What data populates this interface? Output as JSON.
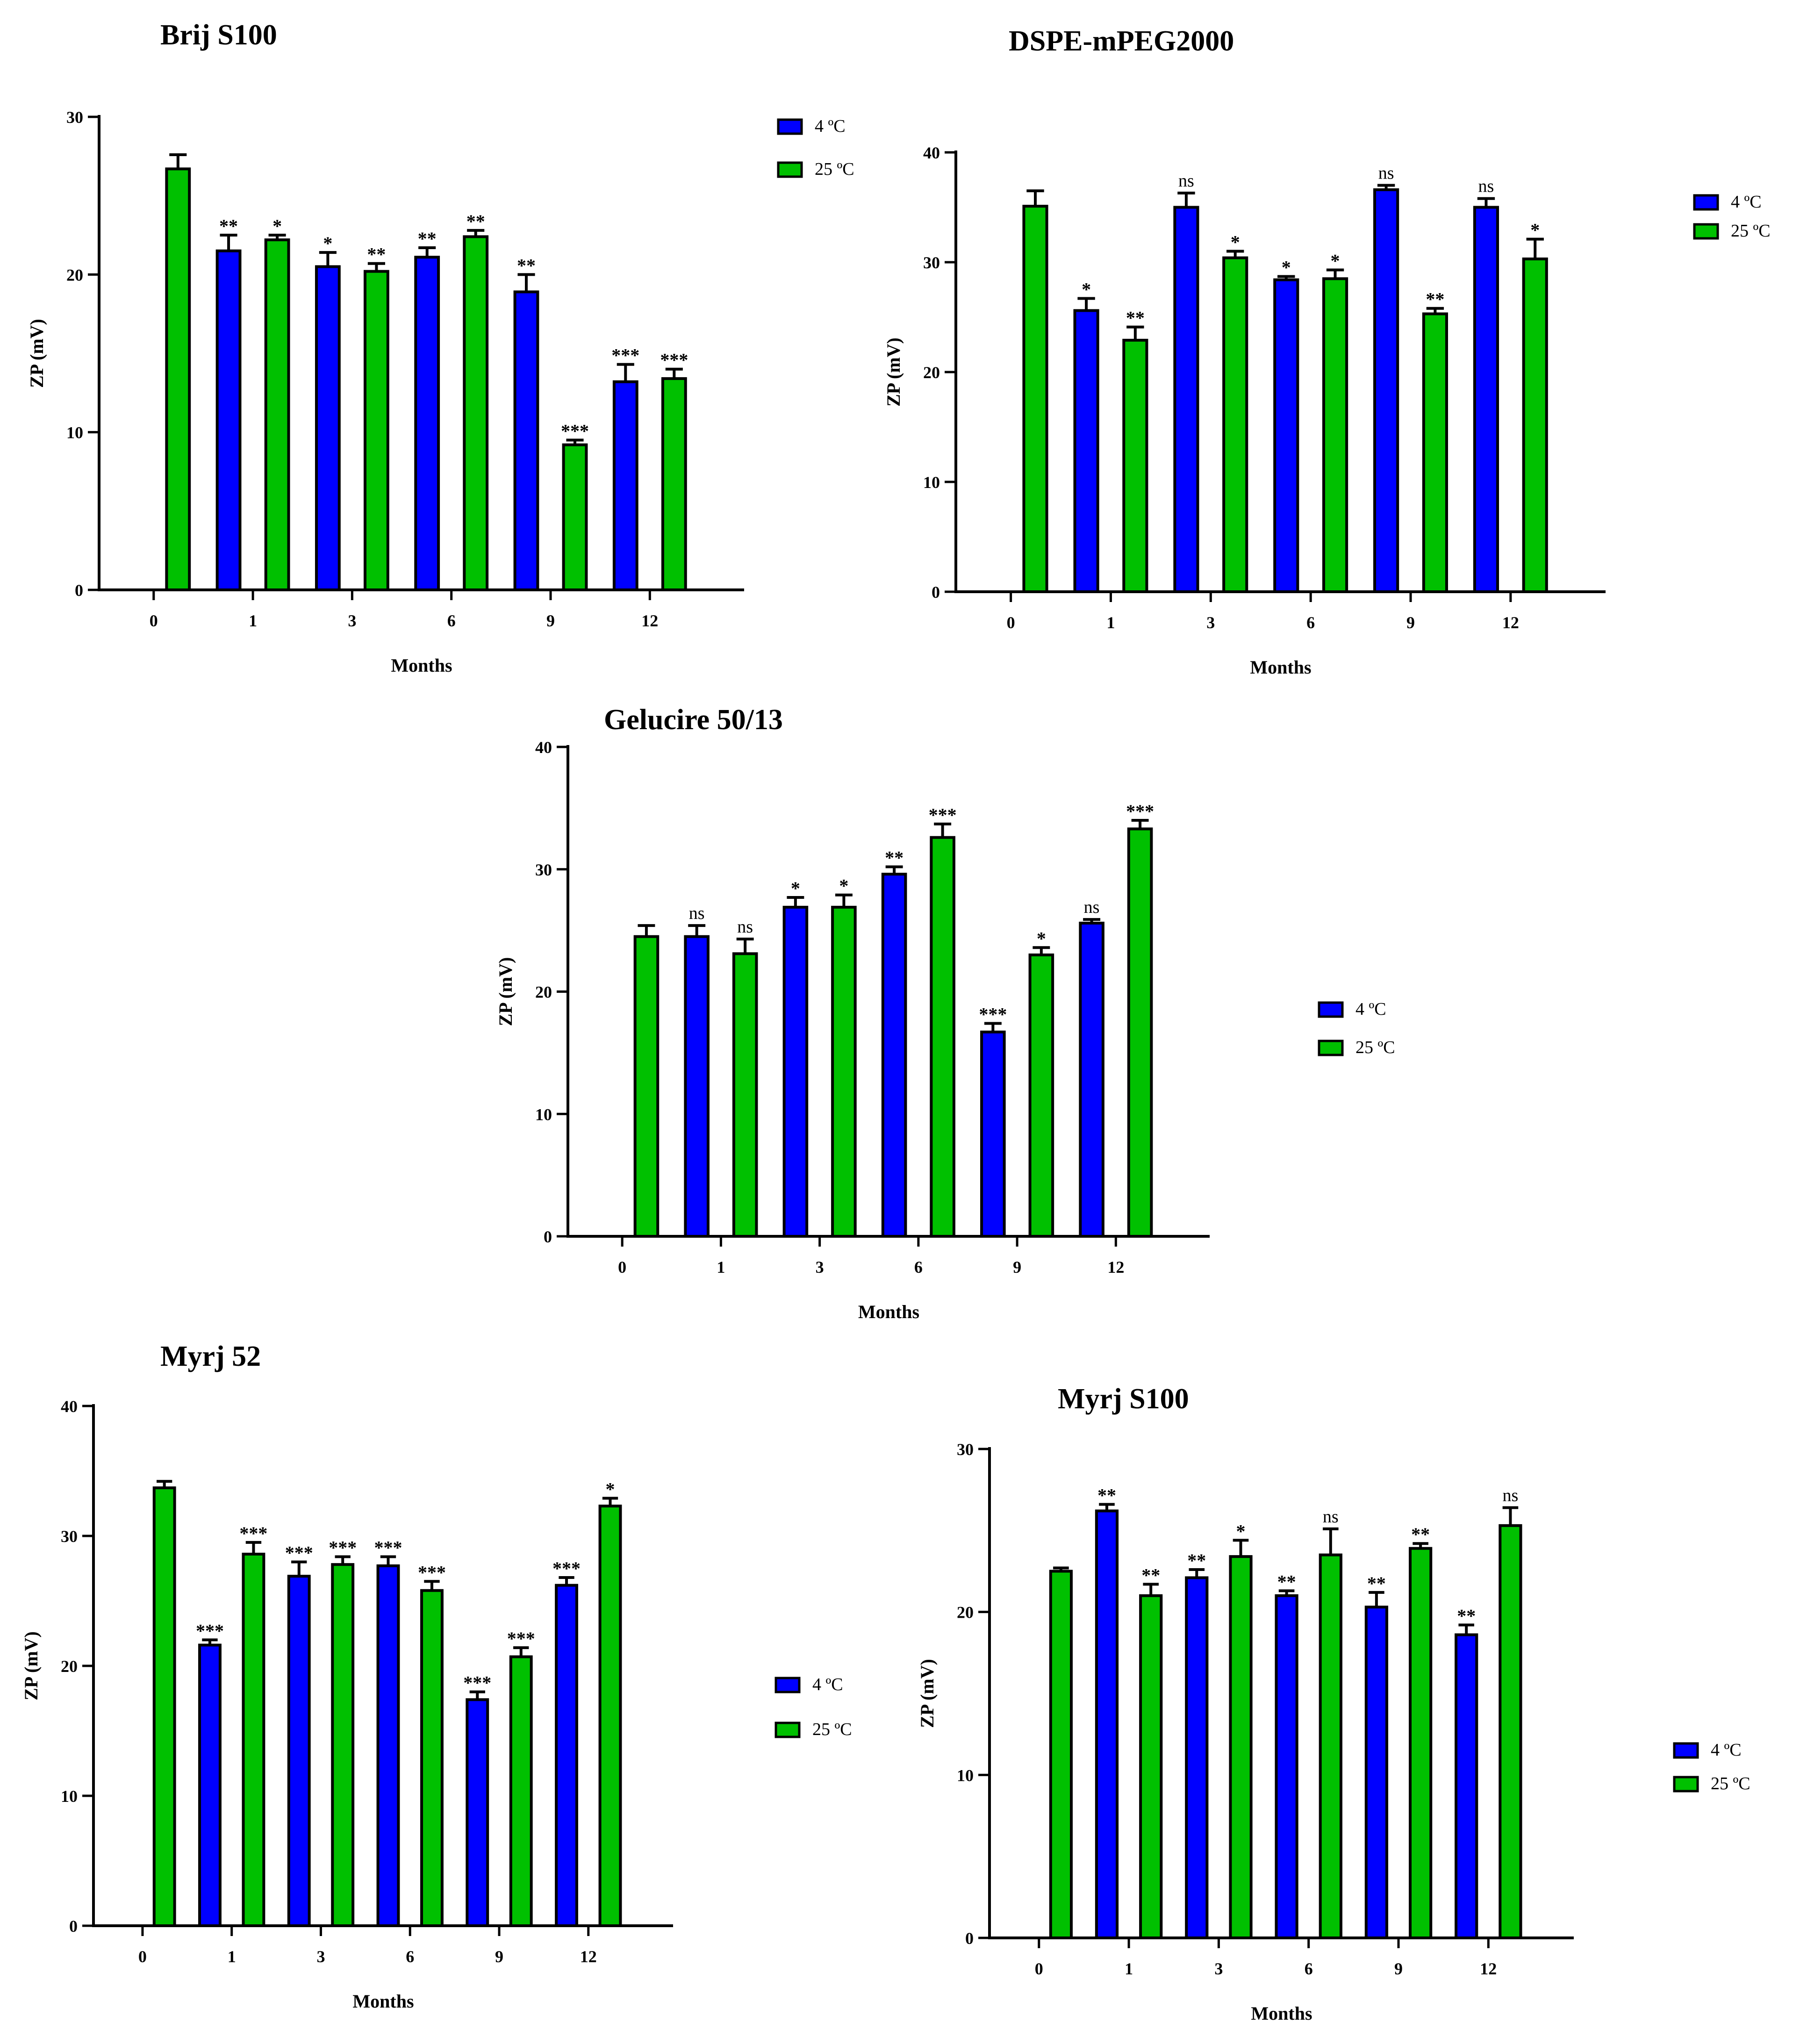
{
  "figure": {
    "colors": {
      "blue": "#0000ff",
      "green": "#00c000",
      "stroke": "#000000"
    },
    "legend_labels": [
      "4 ºC",
      "25 ºC"
    ]
  },
  "chart_data": [
    {
      "type": "bar",
      "title": "Brij S100",
      "xlabel": "Months",
      "ylabel": "ZP (mV)",
      "ylim": [
        0,
        30
      ],
      "yticks": [
        0,
        10,
        20,
        30
      ],
      "categories": [
        "0",
        "1",
        "3",
        "6",
        "9",
        "12"
      ],
      "legend_position": "top-right",
      "series": [
        {
          "name": "4 ºC",
          "color": "#0000ff",
          "values": [
            null,
            21.5,
            20.5,
            21.1,
            18.9,
            13.2
          ],
          "errors": [
            null,
            1.0,
            0.9,
            0.6,
            1.1,
            1.1
          ],
          "significance": [
            "",
            "**",
            "*",
            "**",
            "**",
            "***"
          ]
        },
        {
          "name": "25 ºC",
          "color": "#00c000",
          "values": [
            26.7,
            22.2,
            20.2,
            22.4,
            9.2,
            13.4
          ],
          "errors": [
            0.9,
            0.3,
            0.5,
            0.4,
            0.3,
            0.6
          ],
          "significance": [
            "",
            "*",
            "**",
            "**",
            "***",
            "***"
          ]
        }
      ]
    },
    {
      "type": "bar",
      "title": "DSPE-mPEG2000",
      "xlabel": "Months",
      "ylabel": "ZP (mV)",
      "ylim": [
        0,
        40
      ],
      "yticks": [
        0,
        10,
        20,
        30,
        40
      ],
      "categories": [
        "0",
        "1",
        "3",
        "6",
        "9",
        "12"
      ],
      "legend_position": "right",
      "series": [
        {
          "name": "4 ºC",
          "color": "#0000ff",
          "values": [
            null,
            25.6,
            35.0,
            28.4,
            36.6,
            35.0
          ],
          "errors": [
            null,
            1.1,
            1.3,
            0.3,
            0.4,
            0.8
          ],
          "significance": [
            "",
            "*",
            "ns",
            "*",
            "ns",
            "ns"
          ]
        },
        {
          "name": "25 ºC",
          "color": "#00c000",
          "values": [
            35.1,
            22.9,
            30.4,
            28.5,
            25.3,
            30.3
          ],
          "errors": [
            1.4,
            1.2,
            0.6,
            0.8,
            0.5,
            1.8
          ],
          "significance": [
            "",
            "**",
            "*",
            "*",
            "**",
            "*"
          ]
        }
      ]
    },
    {
      "type": "bar",
      "title": "Gelucire 50/13",
      "xlabel": "Months",
      "ylabel": "ZP (mV)",
      "ylim": [
        0,
        40
      ],
      "yticks": [
        0,
        10,
        20,
        30,
        40
      ],
      "categories": [
        "0",
        "1",
        "3",
        "6",
        "9",
        "12"
      ],
      "legend_position": "right",
      "series": [
        {
          "name": "4 ºC",
          "color": "#0000ff",
          "values": [
            null,
            24.5,
            26.9,
            29.6,
            16.7,
            25.6
          ],
          "errors": [
            null,
            0.9,
            0.8,
            0.6,
            0.7,
            0.3
          ],
          "significance": [
            "",
            "ns",
            "*",
            "**",
            "***",
            "ns"
          ]
        },
        {
          "name": "25 ºC",
          "color": "#00c000",
          "values": [
            24.5,
            23.1,
            26.9,
            32.6,
            23.0,
            33.3
          ],
          "errors": [
            0.9,
            1.2,
            1.0,
            1.1,
            0.6,
            0.7
          ],
          "significance": [
            "",
            "ns",
            "*",
            "***",
            "*",
            "***"
          ]
        }
      ]
    },
    {
      "type": "bar",
      "title": "Myrj 52",
      "xlabel": "Months",
      "ylabel": "ZP (mV)",
      "ylim": [
        0,
        40
      ],
      "yticks": [
        0,
        10,
        20,
        30,
        40
      ],
      "categories": [
        "0",
        "1",
        "3",
        "6",
        "9",
        "12"
      ],
      "legend_position": "right",
      "series": [
        {
          "name": "4 ºC",
          "color": "#0000ff",
          "values": [
            null,
            21.6,
            26.9,
            27.7,
            17.4,
            26.2
          ],
          "errors": [
            null,
            0.4,
            1.1,
            0.7,
            0.6,
            0.6
          ],
          "significance": [
            "",
            "***",
            "***",
            "***",
            "***",
            "***"
          ]
        },
        {
          "name": "25 ºC",
          "color": "#00c000",
          "values": [
            33.7,
            28.6,
            27.8,
            25.8,
            20.7,
            32.3
          ],
          "errors": [
            0.5,
            0.9,
            0.6,
            0.7,
            0.7,
            0.6
          ],
          "significance": [
            "",
            "***",
            "***",
            "***",
            "***",
            "*"
          ]
        }
      ]
    },
    {
      "type": "bar",
      "title": "Myrj S100",
      "xlabel": "Months",
      "ylabel": "ZP (mV)",
      "ylim": [
        0,
        30
      ],
      "yticks": [
        0,
        10,
        20,
        30
      ],
      "categories": [
        "0",
        "1",
        "3",
        "6",
        "9",
        "12"
      ],
      "legend_position": "right",
      "series": [
        {
          "name": "4 ºC",
          "color": "#0000ff",
          "values": [
            null,
            26.2,
            22.1,
            21.0,
            20.3,
            18.6
          ],
          "errors": [
            null,
            0.4,
            0.5,
            0.3,
            0.9,
            0.6
          ],
          "significance": [
            "",
            "**",
            "**",
            "**",
            "**",
            "**"
          ]
        },
        {
          "name": "25 ºC",
          "color": "#00c000",
          "values": [
            22.5,
            21.0,
            23.4,
            23.5,
            23.9,
            25.3
          ],
          "errors": [
            0.2,
            0.7,
            1.0,
            1.6,
            0.3,
            1.1
          ],
          "significance": [
            "",
            "**",
            "*",
            "ns",
            "**",
            "ns"
          ]
        }
      ]
    }
  ]
}
